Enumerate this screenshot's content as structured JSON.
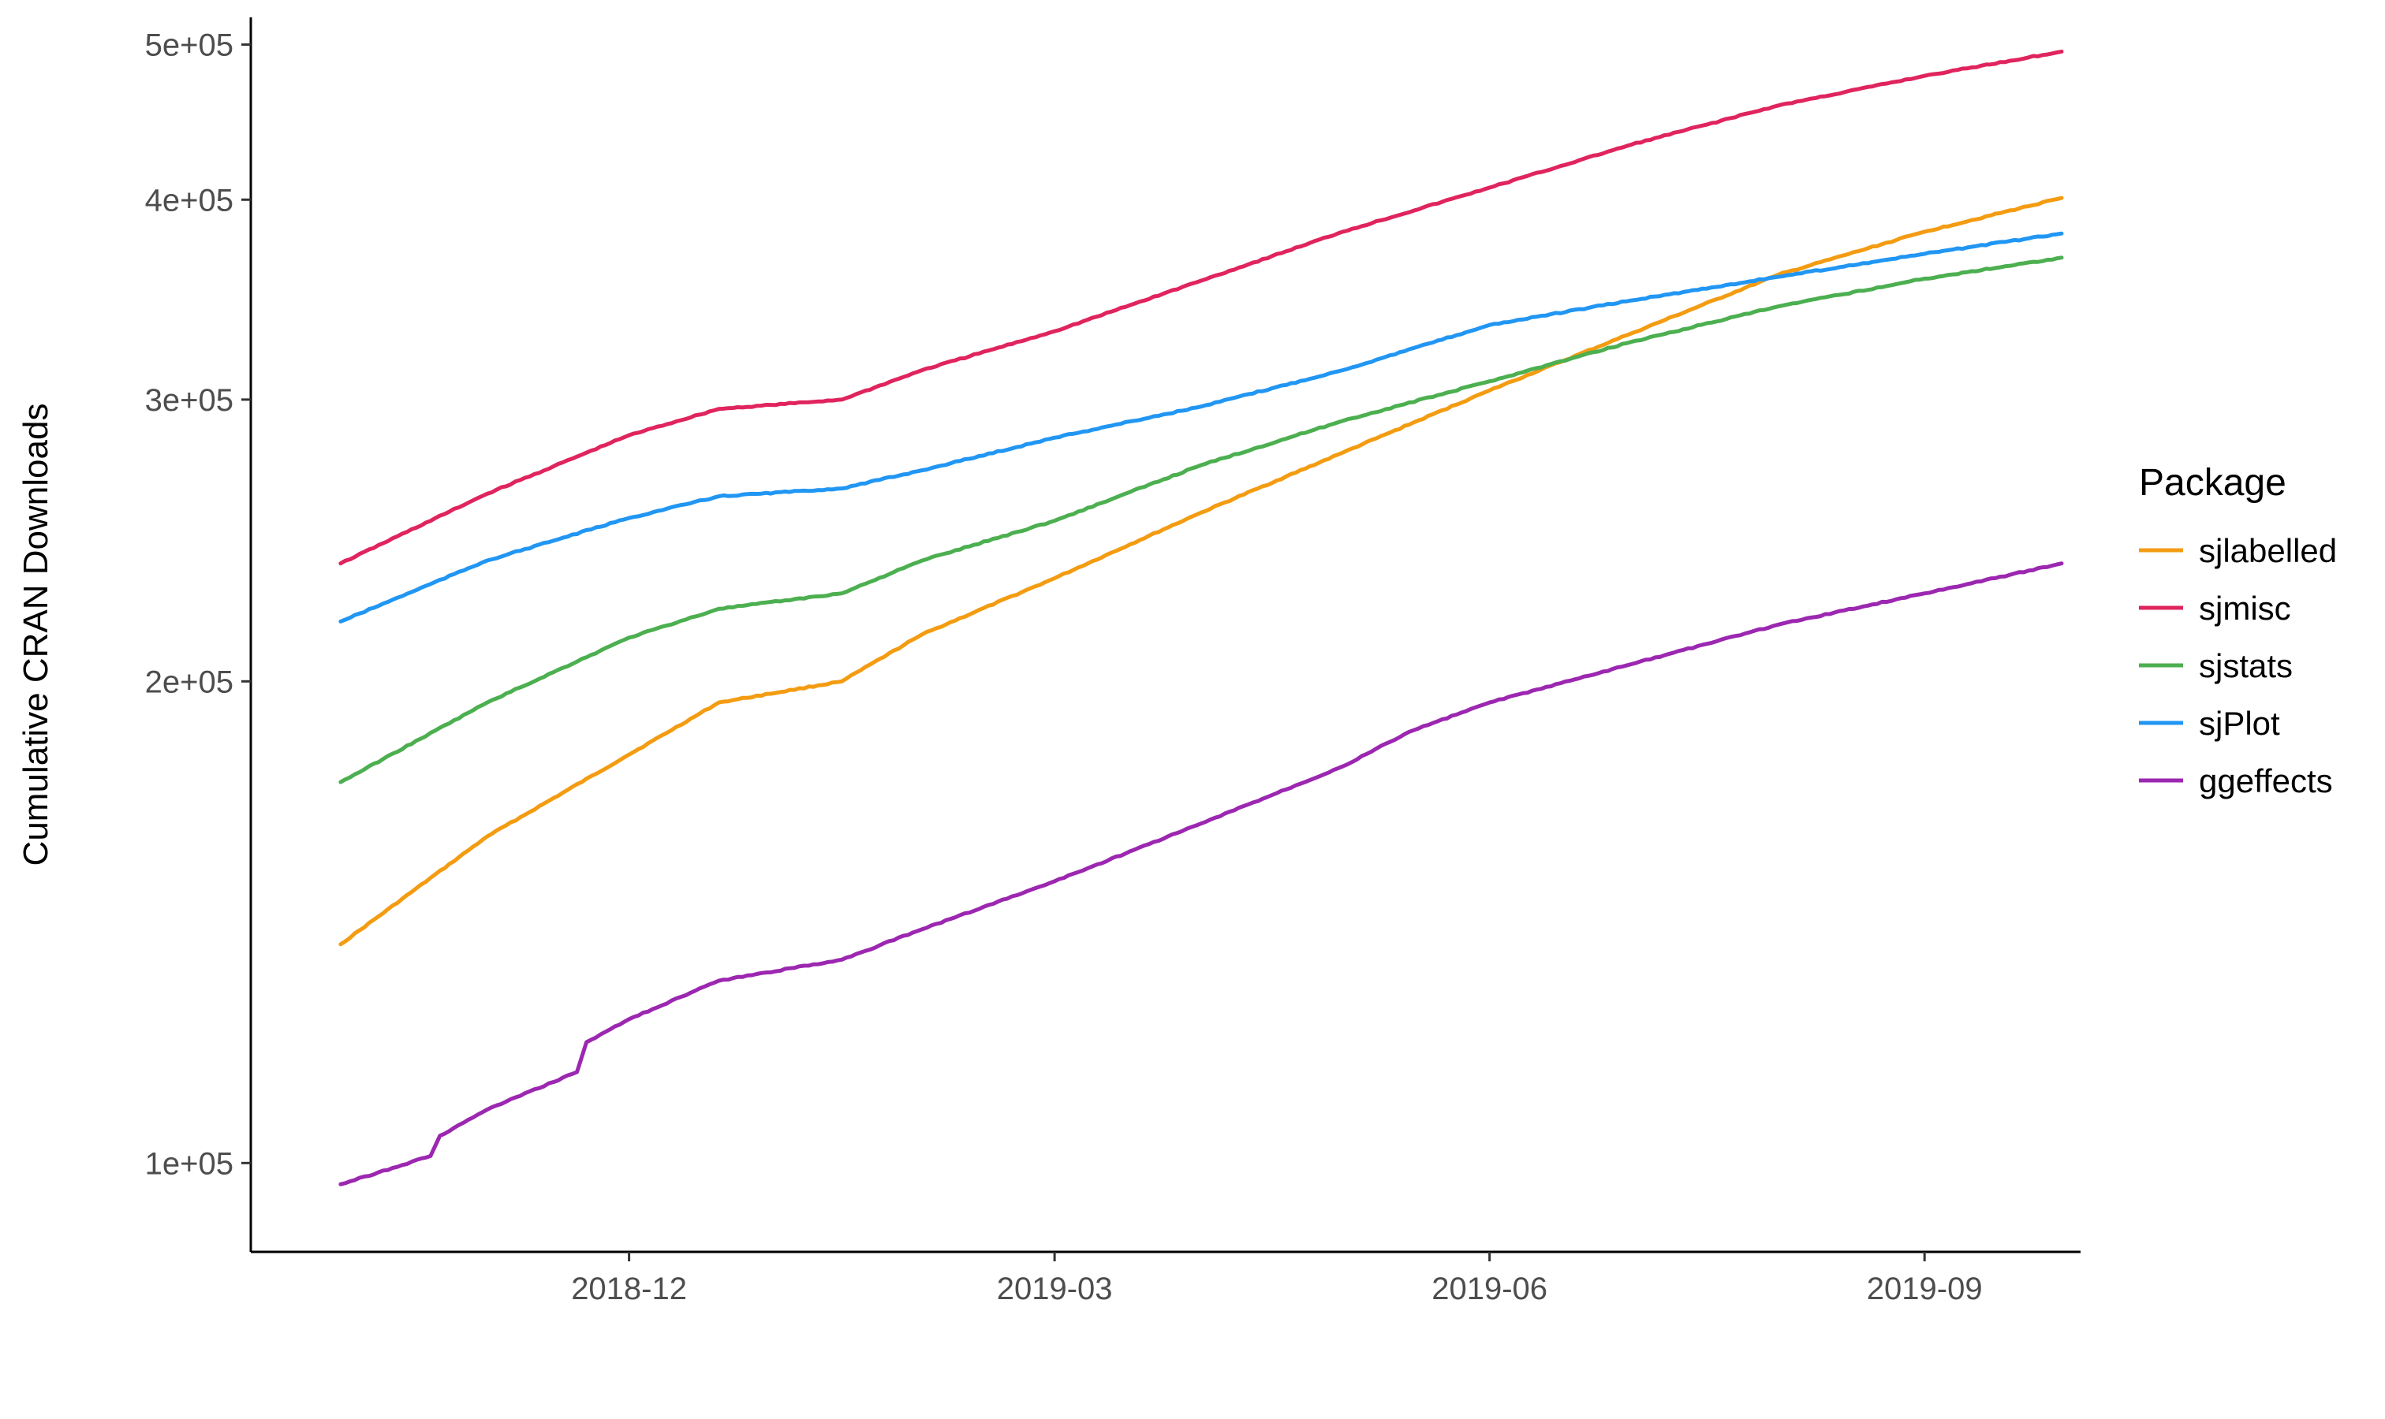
{
  "chart_data": {
    "type": "line",
    "title": "",
    "xlabel": "",
    "ylabel": "Cumulative CRAN Downloads",
    "y_scale": "log",
    "ylim": [
      88000,
      520000
    ],
    "xlim": [
      "2018-09-12",
      "2019-10-04"
    ],
    "grid": false,
    "x_ticks": [
      {
        "value": "2018-12-01",
        "label": "2018-12"
      },
      {
        "value": "2019-03-01",
        "label": "2019-03"
      },
      {
        "value": "2019-06-01",
        "label": "2019-06"
      },
      {
        "value": "2019-09-01",
        "label": "2019-09"
      }
    ],
    "y_ticks": [
      {
        "value": 100000,
        "label": "1e+05"
      },
      {
        "value": 200000,
        "label": "2e+05"
      },
      {
        "value": 300000,
        "label": "3e+05"
      },
      {
        "value": 400000,
        "label": "4e+05"
      },
      {
        "value": 500000,
        "label": "5e+05"
      }
    ],
    "legend": {
      "title": "Package",
      "position": "right"
    },
    "series": [
      {
        "name": "sjlabelled",
        "color": "#F39C12",
        "points": [
          [
            "2018-10-01",
            137000
          ],
          [
            "2018-11-01",
            160000
          ],
          [
            "2018-12-01",
            180000
          ],
          [
            "2018-12-20",
            194000
          ],
          [
            "2019-01-15",
            200000
          ],
          [
            "2019-02-01",
            214000
          ],
          [
            "2019-03-01",
            232000
          ],
          [
            "2019-04-01",
            255000
          ],
          [
            "2019-05-01",
            278000
          ],
          [
            "2019-06-01",
            304000
          ],
          [
            "2019-07-01",
            330000
          ],
          [
            "2019-08-01",
            359000
          ],
          [
            "2019-09-01",
            382000
          ],
          [
            "2019-09-30",
            401000
          ]
        ]
      },
      {
        "name": "sjmisc",
        "color": "#E0245E",
        "points": [
          [
            "2018-10-01",
            237000
          ],
          [
            "2018-11-01",
            262000
          ],
          [
            "2018-12-01",
            285000
          ],
          [
            "2018-12-20",
            296000
          ],
          [
            "2019-01-15",
            300000
          ],
          [
            "2019-02-01",
            313000
          ],
          [
            "2019-03-01",
            331000
          ],
          [
            "2019-04-01",
            356000
          ],
          [
            "2019-05-01",
            382000
          ],
          [
            "2019-06-01",
            407000
          ],
          [
            "2019-07-01",
            433000
          ],
          [
            "2019-08-01",
            458000
          ],
          [
            "2019-09-01",
            478000
          ],
          [
            "2019-09-30",
            495000
          ]
        ]
      },
      {
        "name": "sjstats",
        "color": "#4CAF50",
        "points": [
          [
            "2018-10-01",
            173000
          ],
          [
            "2018-11-01",
            194000
          ],
          [
            "2018-12-01",
            213000
          ],
          [
            "2018-12-20",
            222000
          ],
          [
            "2019-01-15",
            227000
          ],
          [
            "2019-02-01",
            238000
          ],
          [
            "2019-03-01",
            252000
          ],
          [
            "2019-04-01",
            273000
          ],
          [
            "2019-05-01",
            291000
          ],
          [
            "2019-06-01",
            308000
          ],
          [
            "2019-07-01",
            326000
          ],
          [
            "2019-08-01",
            343000
          ],
          [
            "2019-09-01",
            357000
          ],
          [
            "2019-09-30",
            368000
          ]
        ]
      },
      {
        "name": "sjPlot",
        "color": "#2196F3",
        "points": [
          [
            "2018-10-01",
            218000
          ],
          [
            "2018-11-01",
            238000
          ],
          [
            "2018-12-01",
            253000
          ],
          [
            "2018-12-20",
            261000
          ],
          [
            "2019-01-15",
            264000
          ],
          [
            "2019-02-01",
            271000
          ],
          [
            "2019-03-01",
            284000
          ],
          [
            "2019-04-01",
            297000
          ],
          [
            "2019-05-01",
            313000
          ],
          [
            "2019-05-10",
            319000
          ],
          [
            "2019-06-01",
            334000
          ],
          [
            "2019-07-01",
            346000
          ],
          [
            "2019-08-01",
            358000
          ],
          [
            "2019-09-01",
            370000
          ],
          [
            "2019-09-30",
            381000
          ]
        ]
      },
      {
        "name": "ggeffects",
        "color": "#9C27B0",
        "points": [
          [
            "2018-10-01",
            97000
          ],
          [
            "2018-10-20",
            101000
          ],
          [
            "2018-10-22",
            104000
          ],
          [
            "2018-11-01",
            108000
          ],
          [
            "2018-11-20",
            114000
          ],
          [
            "2018-11-22",
            119000
          ],
          [
            "2018-12-01",
            123000
          ],
          [
            "2018-12-20",
            130000
          ],
          [
            "2019-01-15",
            134000
          ],
          [
            "2019-02-01",
            140000
          ],
          [
            "2019-03-01",
            150000
          ],
          [
            "2019-04-01",
            163000
          ],
          [
            "2019-05-01",
            177000
          ],
          [
            "2019-05-15",
            186000
          ],
          [
            "2019-06-01",
            194000
          ],
          [
            "2019-07-01",
            205000
          ],
          [
            "2019-08-01",
            217000
          ],
          [
            "2019-09-01",
            227000
          ],
          [
            "2019-09-30",
            237000
          ]
        ]
      }
    ]
  }
}
